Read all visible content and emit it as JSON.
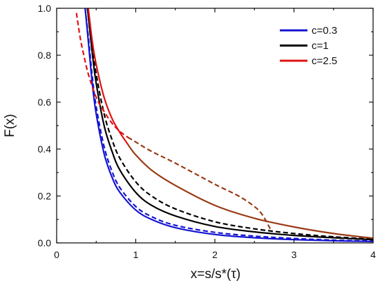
{
  "chart_data": {
    "type": "line",
    "xlabel": "x=s/s*(τ)",
    "ylabel": "F(x)",
    "xlim": [
      0,
      4
    ],
    "ylim": [
      0,
      1.0
    ],
    "x_ticks": [
      "0",
      "1",
      "2",
      "3",
      "4"
    ],
    "y_ticks": [
      "0.0",
      "0.2",
      "0.4",
      "0.6",
      "0.8",
      "1.0"
    ],
    "grid": false,
    "legend_position": "top-right",
    "legend": [
      {
        "label": "c=0.3",
        "color": "#1414d2"
      },
      {
        "label": "c=1",
        "color": "#000000"
      },
      {
        "label": "c=2.5",
        "color": "#e01010"
      }
    ],
    "series": [
      {
        "name": "c=0.3",
        "style": "solid",
        "color": "#1414d2",
        "x": [
          0.36,
          0.4,
          0.45,
          0.5,
          0.6,
          0.7,
          0.8,
          1.0,
          1.2,
          1.5,
          2.0,
          2.5,
          3.0,
          3.5,
          4.0
        ],
        "y": [
          1.0,
          0.86,
          0.68,
          0.55,
          0.38,
          0.28,
          0.215,
          0.14,
          0.1,
          0.065,
          0.036,
          0.022,
          0.014,
          0.009,
          0.006
        ]
      },
      {
        "name": "c=0.3",
        "style": "dashed",
        "color": "#1414d2",
        "x": [
          0.36,
          0.4,
          0.45,
          0.5,
          0.6,
          0.7,
          0.8,
          1.0,
          1.2,
          1.5,
          2.0,
          2.5,
          3.0,
          3.5,
          4.0
        ],
        "y": [
          1.0,
          0.88,
          0.71,
          0.58,
          0.41,
          0.305,
          0.235,
          0.155,
          0.112,
          0.075,
          0.045,
          0.029,
          0.019,
          0.012,
          0.008
        ]
      },
      {
        "name": "c=1",
        "style": "solid",
        "color": "#000000",
        "x": [
          0.39,
          0.45,
          0.5,
          0.6,
          0.7,
          0.8,
          1.0,
          1.2,
          1.5,
          2.0,
          2.5,
          3.0,
          3.5,
          4.0
        ],
        "y": [
          1.0,
          0.81,
          0.68,
          0.5,
          0.39,
          0.31,
          0.215,
          0.16,
          0.115,
          0.07,
          0.047,
          0.032,
          0.022,
          0.014
        ]
      },
      {
        "name": "c=1",
        "style": "dashed",
        "color": "#000000",
        "x": [
          0.39,
          0.45,
          0.5,
          0.6,
          0.7,
          0.8,
          1.0,
          1.2,
          1.5,
          2.0,
          2.5,
          3.0,
          3.5,
          4.0
        ],
        "y": [
          1.0,
          0.84,
          0.72,
          0.55,
          0.44,
          0.36,
          0.26,
          0.2,
          0.145,
          0.09,
          0.06,
          0.04,
          0.026,
          0.016
        ]
      },
      {
        "name": "c=2.5",
        "style": "solid",
        "color": "#e01010",
        "x": [
          0.4,
          0.45,
          0.5,
          0.6,
          0.7,
          0.8,
          0.9
        ],
        "y": [
          1.0,
          0.86,
          0.76,
          0.62,
          0.53,
          0.47,
          0.42
        ]
      },
      {
        "name": "c=2.5",
        "style": "solid",
        "color": "#9a3a14",
        "x": [
          0.9,
          1.0,
          1.2,
          1.5,
          2.0,
          2.5,
          3.0,
          3.5,
          4.0
        ],
        "y": [
          0.42,
          0.375,
          0.31,
          0.245,
          0.16,
          0.105,
          0.068,
          0.04,
          0.02
        ]
      },
      {
        "name": "c=2.5",
        "style": "dashed",
        "color": "#e01010",
        "x": [
          0.25,
          0.3,
          0.35,
          0.4,
          0.5,
          0.6,
          0.7,
          0.8,
          0.9
        ],
        "y": [
          0.98,
          0.87,
          0.79,
          0.72,
          0.62,
          0.56,
          0.51,
          0.475,
          0.45
        ]
      },
      {
        "name": "c=2.5",
        "style": "dashed",
        "color": "#9a3a14",
        "x": [
          0.9,
          1.0,
          1.2,
          1.5,
          2.0,
          2.3,
          2.5,
          2.6,
          2.7
        ],
        "y": [
          0.45,
          0.43,
          0.39,
          0.34,
          0.25,
          0.2,
          0.155,
          0.12,
          0.06
        ]
      }
    ]
  }
}
